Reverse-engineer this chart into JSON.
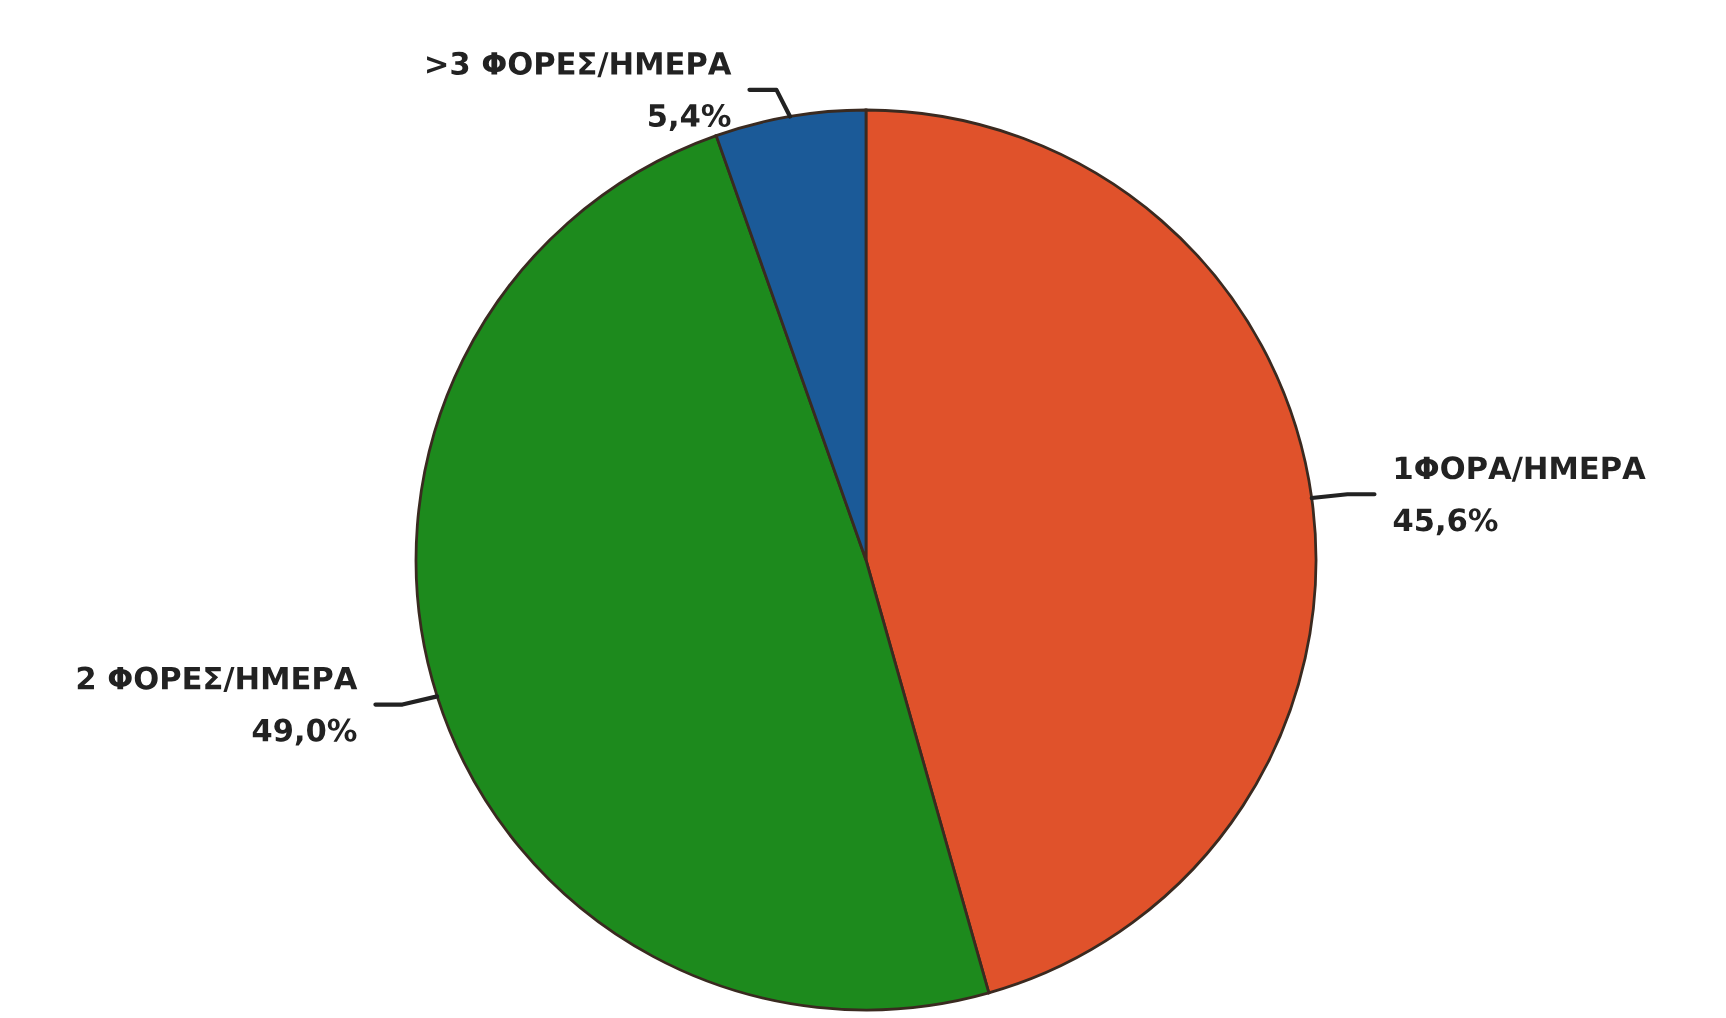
{
  "chart_data": {
    "type": "pie",
    "categories": [
      "1ΦΟΡΑ/ΗΜΕΡΑ",
      "2 ΦΟΡΕΣ/ΗΜΕΡΑ",
      ">3 ΦΟΡΕΣ/ΗΜΕΡΑ"
    ],
    "values": [
      45.6,
      49.0,
      5.4
    ],
    "value_labels": [
      "45,6%",
      "49,0%",
      "5,4%"
    ],
    "colors": [
      "#e0522b",
      "#1d8a1d",
      "#1b5a98"
    ]
  }
}
